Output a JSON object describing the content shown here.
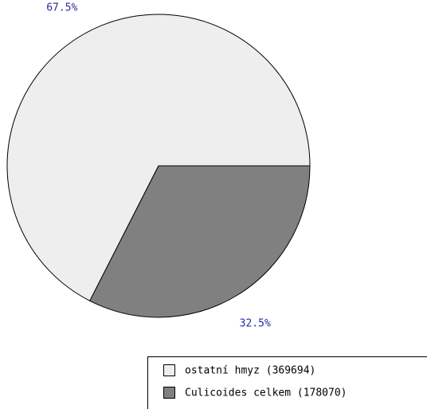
{
  "chart_data": {
    "type": "pie",
    "categories": [
      "ostatní hmyz (369694)",
      "Culicoides celkem (178070)"
    ],
    "values": [
      67.5,
      32.5
    ],
    "value_labels": [
      "67.5%",
      "32.5%"
    ],
    "colors": [
      "#eeeeee",
      "#808080"
    ],
    "legend": "bottom-right"
  }
}
